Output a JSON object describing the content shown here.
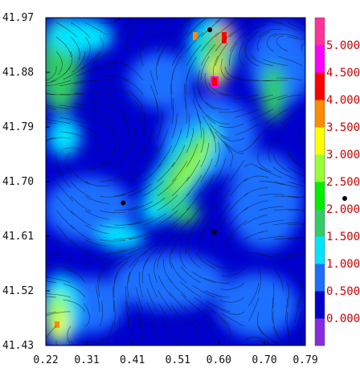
{
  "chart_data": {
    "type": "heatmap",
    "title": "",
    "xlabel": "",
    "ylabel": "",
    "xlim": [
      0.22,
      0.79
    ],
    "ylim": [
      41.43,
      41.97
    ],
    "x_ticks": [
      "0.22",
      "0.31",
      "0.41",
      "0.51",
      "0.60",
      "0.70",
      "0.79"
    ],
    "y_ticks": [
      "41.97",
      "41.88",
      "41.79",
      "41.70",
      "41.61",
      "41.52",
      "41.43"
    ],
    "overlay": "streamlines",
    "colorbar": {
      "labels": [
        "0.000",
        "0.500",
        "1.000",
        "1.500",
        "2.000",
        "2.500",
        "3.000",
        "3.500",
        "4.000",
        "4.500",
        "5.000"
      ],
      "colors": [
        "#8a2be2",
        "#0000cd",
        "#1e6fff",
        "#00e5ff",
        "#33cc66",
        "#00ee00",
        "#99ff33",
        "#ffff00",
        "#ff8c00",
        "#ff0000",
        "#ff00ff",
        "#ff3399"
      ],
      "label_color": "#cc0000"
    },
    "markers": [
      {
        "x": 0.39,
        "y": 41.665
      },
      {
        "x": 0.59,
        "y": 41.617
      },
      {
        "x": 0.58,
        "y": 41.95
      }
    ]
  }
}
